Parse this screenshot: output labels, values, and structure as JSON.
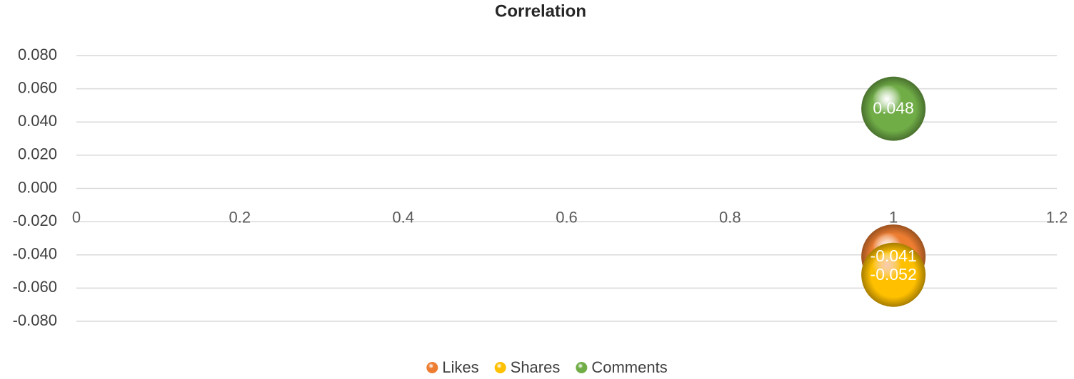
{
  "chart_data": {
    "type": "bubble",
    "title": "Correlation",
    "xlim": [
      0,
      1.2
    ],
    "xticks": [
      0,
      0.2,
      0.4,
      0.6,
      0.8,
      1,
      1.2
    ],
    "ylim": [
      -0.08,
      0.08
    ],
    "yticks": [
      {
        "value": -0.08,
        "label": "-0.080"
      },
      {
        "value": -0.06,
        "label": "-0.060"
      },
      {
        "value": -0.04,
        "label": "-0.040"
      },
      {
        "value": -0.02,
        "label": "-0.020"
      },
      {
        "value": 0,
        "label": "0.000"
      },
      {
        "value": 0.02,
        "label": "0.020"
      },
      {
        "value": 0.04,
        "label": "0.040"
      },
      {
        "value": 0.06,
        "label": "0.060"
      },
      {
        "value": 0.08,
        "label": "0.080"
      }
    ],
    "grid": true,
    "legend": "bottom",
    "series": [
      {
        "name": "Likes",
        "color": "#ed7d31",
        "x": [
          1
        ],
        "values": [
          -0.041
        ]
      },
      {
        "name": "Shares",
        "color": "#ffc000",
        "x": [
          1
        ],
        "values": [
          -0.052
        ]
      },
      {
        "name": "Comments",
        "color": "#70ad47",
        "x": [
          1
        ],
        "values": [
          0.048
        ]
      }
    ]
  }
}
